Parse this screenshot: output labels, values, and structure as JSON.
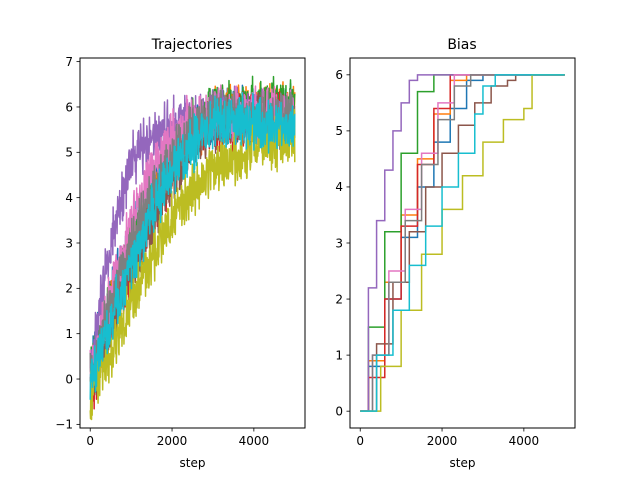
{
  "chart_data": [
    {
      "type": "line",
      "title": "Trajectories",
      "xlabel": "step",
      "ylabel": "",
      "xlim": [
        -250,
        5250
      ],
      "ylim": [
        -1.08,
        7.08
      ],
      "xticks": [
        0,
        2000,
        4000
      ],
      "yticks": [
        -1,
        0,
        1,
        2,
        3,
        4,
        5,
        6,
        7
      ],
      "grid": false,
      "legend": "none",
      "n_series": 10,
      "n_steps": 5000,
      "series_approx": [
        {
          "color": "#1f77b4",
          "x": [
            0,
            500,
            1000,
            1500,
            2000,
            2500,
            3000,
            3500,
            4000,
            4500,
            5000
          ],
          "y": [
            0.2,
            1.8,
            3.0,
            4.0,
            4.8,
            5.4,
            5.7,
            5.8,
            5.8,
            5.9,
            5.9
          ]
        },
        {
          "color": "#ff7f0e",
          "x": [
            0,
            500,
            1000,
            1500,
            2000,
            2500,
            3000,
            3500,
            4000,
            4500,
            5000
          ],
          "y": [
            0.0,
            1.5,
            2.8,
            3.8,
            4.8,
            5.5,
            5.8,
            5.9,
            5.9,
            5.9,
            5.9
          ]
        },
        {
          "color": "#2ca02c",
          "x": [
            0,
            500,
            1000,
            1500,
            2000,
            2500,
            3000,
            3500,
            4000,
            4500,
            5000
          ],
          "y": [
            0.1,
            1.6,
            2.9,
            3.9,
            4.9,
            5.6,
            5.9,
            6.0,
            6.0,
            6.0,
            6.0
          ]
        },
        {
          "color": "#d62728",
          "x": [
            0,
            500,
            1000,
            1500,
            2000,
            2500,
            3000,
            3500,
            4000,
            4500,
            5000
          ],
          "y": [
            -0.3,
            1.2,
            2.4,
            3.6,
            4.6,
            5.3,
            5.6,
            5.7,
            5.7,
            5.7,
            5.7
          ]
        },
        {
          "color": "#9467bd",
          "x": [
            0,
            500,
            1000,
            1500,
            2000,
            2500,
            3000,
            3500,
            4000,
            4500,
            5000
          ],
          "y": [
            0.2,
            3.0,
            4.8,
            5.4,
            5.6,
            5.7,
            5.8,
            5.8,
            5.8,
            5.8,
            5.8
          ]
        },
        {
          "color": "#8c564b",
          "x": [
            0,
            500,
            1000,
            1500,
            2000,
            2500,
            3000,
            3500,
            4000,
            4500,
            5000
          ],
          "y": [
            -0.2,
            1.2,
            2.4,
            3.5,
            4.5,
            5.2,
            5.6,
            5.7,
            5.7,
            5.6,
            5.6
          ]
        },
        {
          "color": "#e377c2",
          "x": [
            0,
            500,
            1000,
            1500,
            2000,
            2500,
            3000,
            3500,
            4000,
            4500,
            5000
          ],
          "y": [
            0.0,
            1.8,
            3.4,
            4.6,
            5.3,
            5.7,
            5.8,
            5.9,
            5.8,
            5.8,
            5.8
          ]
        },
        {
          "color": "#7f7f7f",
          "x": [
            0,
            500,
            1000,
            1500,
            2000,
            2500,
            3000,
            3500,
            4000,
            4500,
            5000
          ],
          "y": [
            0.0,
            1.6,
            3.0,
            4.0,
            4.9,
            5.5,
            5.8,
            5.8,
            5.8,
            5.7,
            5.7
          ]
        },
        {
          "color": "#bcbd22",
          "x": [
            0,
            500,
            1000,
            1500,
            2000,
            2500,
            3000,
            3500,
            4000,
            4500,
            5000
          ],
          "y": [
            -0.3,
            0.6,
            1.7,
            2.7,
            3.5,
            4.2,
            4.6,
            4.9,
            5.1,
            5.2,
            5.3
          ]
        },
        {
          "color": "#17becf",
          "x": [
            0,
            500,
            1000,
            1500,
            2000,
            2500,
            3000,
            3500,
            4000,
            4500,
            5000
          ],
          "y": [
            0.0,
            1.3,
            2.6,
            3.7,
            4.6,
            5.2,
            5.6,
            5.7,
            5.7,
            5.6,
            5.6
          ]
        }
      ]
    },
    {
      "type": "line",
      "title": "Bias",
      "xlabel": "step",
      "ylabel": "",
      "xlim": [
        -250,
        5250
      ],
      "ylim": [
        -0.3,
        6.3
      ],
      "xticks": [
        0,
        2000,
        4000
      ],
      "yticks": [
        0,
        1,
        2,
        3,
        4,
        5,
        6
      ],
      "grid": false,
      "legend": "none",
      "series": [
        {
          "color": "#1f77b4",
          "x": [
            0,
            200,
            600,
            1000,
            1400,
            1800,
            2200,
            2600,
            3000,
            3400
          ],
          "y": [
            0,
            0.8,
            2.0,
            3.1,
            4.0,
            4.8,
            5.4,
            5.9,
            6.0,
            6.0
          ]
        },
        {
          "color": "#ff7f0e",
          "x": [
            0,
            200,
            600,
            1000,
            1400,
            1800,
            2200,
            2600
          ],
          "y": [
            0,
            0.9,
            2.3,
            3.5,
            4.5,
            5.3,
            5.9,
            6.0
          ]
        },
        {
          "color": "#2ca02c",
          "x": [
            0,
            200,
            600,
            1000,
            1400,
            1800
          ],
          "y": [
            0,
            1.5,
            3.2,
            4.6,
            5.7,
            6.0
          ]
        },
        {
          "color": "#d62728",
          "x": [
            0,
            200,
            600,
            1000,
            1400,
            1800,
            2200
          ],
          "y": [
            0,
            0.6,
            2.0,
            3.3,
            4.4,
            5.4,
            6.0
          ]
        },
        {
          "color": "#9467bd",
          "x": [
            0,
            200,
            400,
            600,
            800,
            1000,
            1200,
            1400
          ],
          "y": [
            0,
            2.2,
            3.4,
            4.3,
            5.0,
            5.5,
            5.9,
            6.0
          ]
        },
        {
          "color": "#8c564b",
          "x": [
            0,
            400,
            800,
            1200,
            1600,
            2000,
            2400,
            2800,
            3200,
            3600,
            3800
          ],
          "y": [
            0,
            1.2,
            2.3,
            3.2,
            4.0,
            4.6,
            5.1,
            5.5,
            5.8,
            5.9,
            6.0
          ]
        },
        {
          "color": "#e377c2",
          "x": [
            0,
            300,
            700,
            1100,
            1500,
            1900,
            2300
          ],
          "y": [
            0,
            1.0,
            2.5,
            3.6,
            4.6,
            5.5,
            6.0
          ]
        },
        {
          "color": "#7f7f7f",
          "x": [
            0,
            300,
            700,
            1100,
            1500,
            1900,
            2300,
            2700
          ],
          "y": [
            0,
            1.0,
            2.3,
            3.4,
            4.4,
            5.2,
            5.8,
            6.0
          ]
        },
        {
          "color": "#bcbd22",
          "x": [
            0,
            500,
            1000,
            1500,
            2000,
            2500,
            3000,
            3500,
            4000,
            4200,
            5000
          ],
          "y": [
            0,
            0.8,
            1.8,
            2.8,
            3.6,
            4.2,
            4.8,
            5.2,
            5.4,
            6.0,
            6.0
          ]
        },
        {
          "color": "#17becf",
          "x": [
            0,
            400,
            800,
            1200,
            1600,
            2000,
            2400,
            2800,
            3000,
            3300
          ],
          "y": [
            0,
            1.0,
            1.8,
            2.6,
            3.3,
            4.0,
            4.6,
            5.3,
            5.8,
            6.0
          ]
        }
      ]
    }
  ]
}
